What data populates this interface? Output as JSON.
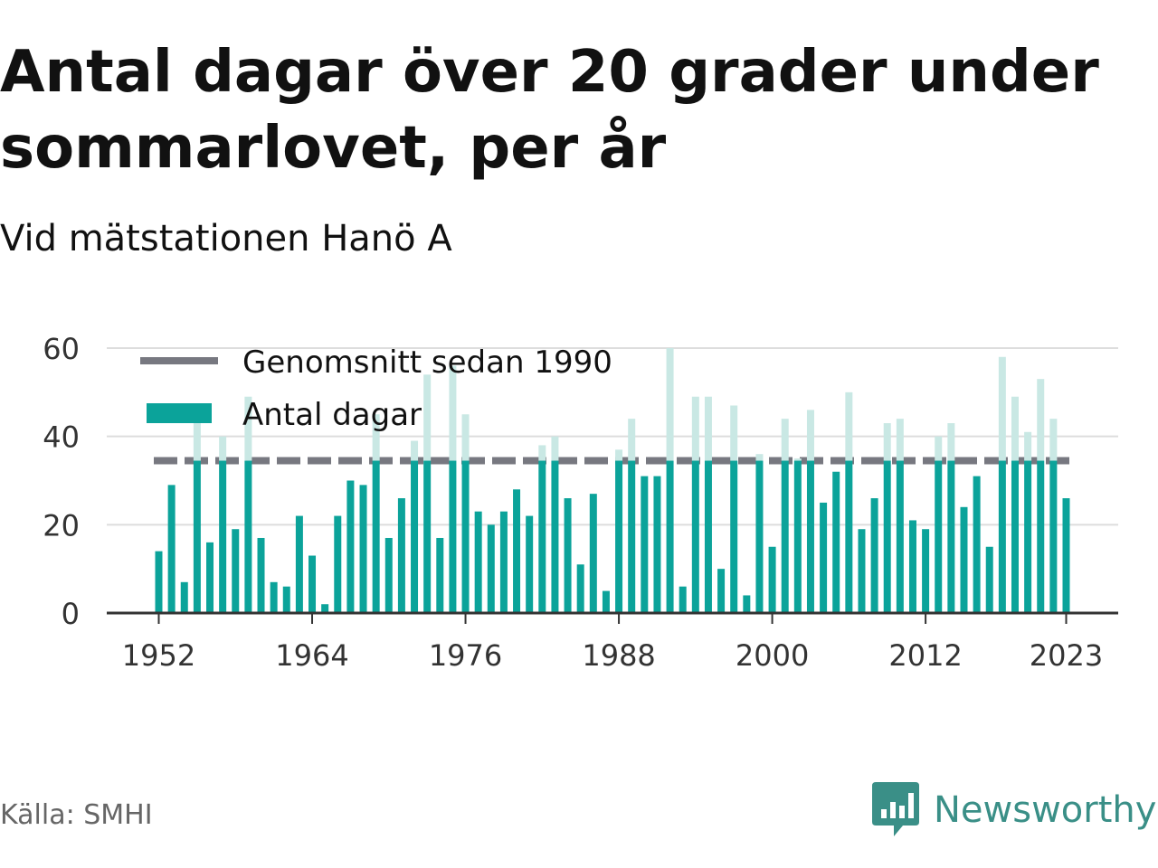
{
  "title": "Antal dagar över 20 grader under sommarlovet, per år",
  "subtitle": "Vid mätstationen Hanö A",
  "source": "Källa: SMHI",
  "brand": {
    "name": "Newsworthy",
    "icon": "newsworthy-logo-icon",
    "color": "#3a8f87"
  },
  "colors": {
    "bar": "#0ba39a",
    "bar_above_average": "#c9e8e4",
    "average_line": "#777880",
    "grid": "#dddddd",
    "axis": "#333333",
    "tick_text": "#333333"
  },
  "chart_data": {
    "type": "bar",
    "title": "Antal dagar över 20 grader under sommarlovet, per år",
    "subtitle": "Vid mätstationen Hanö A",
    "xlabel": "",
    "ylabel": "",
    "ylim": [
      0,
      60
    ],
    "yticks": [
      "0",
      "20",
      "40",
      "60"
    ],
    "xticks": [
      "1952",
      "1964",
      "1976",
      "1988",
      "2000",
      "2012",
      "2023"
    ],
    "grid": true,
    "legend_position": "top-left",
    "legend": [
      {
        "label": "Genomsnitt sedan 1990",
        "type": "line",
        "color": "#777880"
      },
      {
        "label": "Antal dagar",
        "type": "bar",
        "color": "#0ba39a"
      }
    ],
    "average_since_1990": 34.5,
    "series": [
      {
        "name": "Antal dagar",
        "x": [
          1952,
          1953,
          1954,
          1955,
          1956,
          1957,
          1958,
          1959,
          1960,
          1961,
          1962,
          1963,
          1964,
          1965,
          1966,
          1967,
          1968,
          1969,
          1970,
          1971,
          1972,
          1973,
          1974,
          1975,
          1976,
          1977,
          1978,
          1979,
          1980,
          1981,
          1982,
          1983,
          1984,
          1985,
          1986,
          1987,
          1988,
          1989,
          1990,
          1991,
          1992,
          1993,
          1994,
          1995,
          1996,
          1997,
          1998,
          1999,
          2000,
          2001,
          2002,
          2003,
          2004,
          2005,
          2006,
          2007,
          2008,
          2009,
          2010,
          2011,
          2012,
          2013,
          2014,
          2015,
          2016,
          2017,
          2018,
          2019,
          2020,
          2021,
          2022,
          2023
        ],
        "values": [
          14,
          29,
          7,
          43,
          16,
          40,
          19,
          49,
          17,
          7,
          6,
          22,
          13,
          2,
          22,
          30,
          29,
          45,
          17,
          26,
          39,
          54,
          17,
          56,
          45,
          23,
          20,
          23,
          28,
          22,
          38,
          40,
          26,
          11,
          27,
          5,
          37,
          44,
          31,
          31,
          60,
          6,
          49,
          49,
          10,
          47,
          4,
          36,
          15,
          44,
          35,
          46,
          25,
          32,
          50,
          19,
          26,
          43,
          44,
          21,
          19,
          40,
          43,
          24,
          31,
          15,
          58,
          49,
          41,
          53,
          44,
          26
        ]
      }
    ]
  }
}
